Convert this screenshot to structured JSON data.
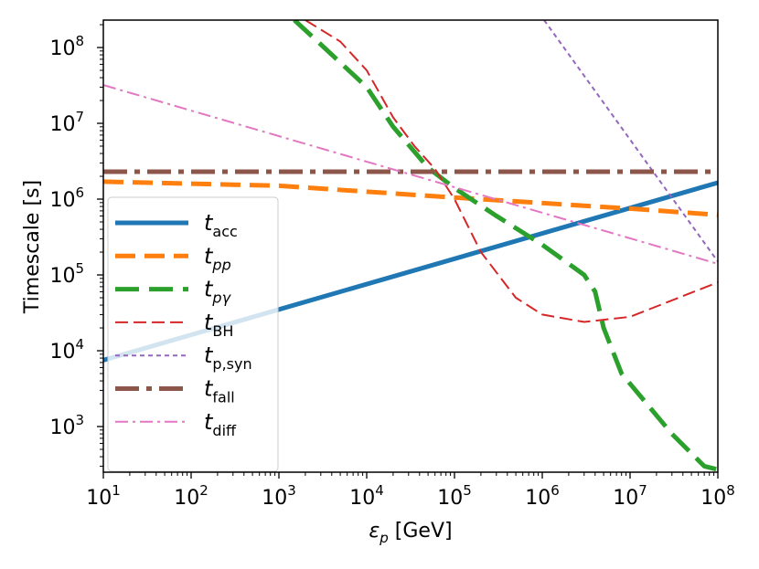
{
  "chart_data": {
    "type": "line",
    "xscale": "log",
    "yscale": "log",
    "xlabel_symbol": "ε",
    "xlabel_sub": "p",
    "xlabel_unit": " [GeV]",
    "ylabel": "Timescale [s]",
    "xlim": [
      10,
      100000000
    ],
    "ylim": [
      250,
      230000000
    ],
    "x_tick_exponents": [
      1,
      2,
      3,
      4,
      5,
      6,
      7,
      8
    ],
    "y_tick_exponents": [
      3,
      4,
      5,
      6,
      7,
      8
    ],
    "tick_base": "10",
    "legend_location": "lower-left",
    "series": [
      {
        "key": "t_acc",
        "label_main": "t",
        "label_sub": "acc",
        "sub_italic": false,
        "color": "#1f77b4",
        "width": 5,
        "dash": "",
        "points": [
          [
            10,
            7500
          ],
          [
            100000000,
            1650000
          ]
        ]
      },
      {
        "key": "t_pp",
        "label_main": "t",
        "label_sub": "pp",
        "sub_italic": true,
        "color": "#ff7f0e",
        "width": 5,
        "dash": "22,10",
        "points": [
          [
            10,
            1700000
          ],
          [
            1000,
            1500000
          ],
          [
            100000,
            1050000
          ],
          [
            10000000,
            750000
          ],
          [
            100000000,
            620000
          ]
        ]
      },
      {
        "key": "t_pgamma",
        "label_main": "t",
        "label_sub": "pγ",
        "sub_italic": true,
        "color": "#2ca02c",
        "width": 5,
        "dash": "26,11",
        "points": [
          [
            1500,
            230000000
          ],
          [
            3000,
            110000000
          ],
          [
            10000,
            30000000
          ],
          [
            20000,
            9000000
          ],
          [
            50000,
            2600000
          ],
          [
            100000,
            1400000
          ],
          [
            300000,
            600000
          ],
          [
            1000000,
            250000
          ],
          [
            3000000,
            100000
          ],
          [
            4000000,
            60000
          ],
          [
            5000000,
            20000
          ],
          [
            8000000,
            5000
          ],
          [
            30000000,
            800
          ],
          [
            70000000,
            300
          ],
          [
            100000000,
            270
          ]
        ]
      },
      {
        "key": "t_BH",
        "label_main": "t",
        "label_sub": "BH",
        "sub_italic": false,
        "color": "#d62728",
        "width": 2,
        "dash": "14,6",
        "points": [
          [
            2000,
            230000000
          ],
          [
            5000,
            120000000
          ],
          [
            10000,
            50000000
          ],
          [
            20000,
            12000000
          ],
          [
            35000,
            5000000
          ],
          [
            60000,
            2500000
          ],
          [
            100000,
            1000000
          ],
          [
            200000,
            200000
          ],
          [
            500000,
            50000
          ],
          [
            1000000,
            30000
          ],
          [
            3000000,
            24000
          ],
          [
            10000000,
            28000
          ],
          [
            100000000,
            80000
          ]
        ]
      },
      {
        "key": "t_psyn",
        "label_main": "t",
        "label_sub": "p,syn",
        "sub_italic": false,
        "color": "#9467bd",
        "width": 2,
        "dash": "5,4",
        "points": [
          [
            1050000,
            230000000
          ],
          [
            100000000,
            150000
          ]
        ]
      },
      {
        "key": "t_fall",
        "label_main": "t",
        "label_sub": "fall",
        "sub_italic": false,
        "color": "#8c564b",
        "width": 5,
        "dash": "26,8,6,8",
        "points": [
          [
            10,
            2300000
          ],
          [
            100000000,
            2300000
          ]
        ]
      },
      {
        "key": "t_diff",
        "label_main": "t",
        "label_sub": "diff",
        "sub_italic": false,
        "color": "#e377c2",
        "width": 2,
        "dash": "14,5,3,5",
        "points": [
          [
            10,
            32000000
          ],
          [
            100000000,
            140000
          ]
        ]
      }
    ]
  }
}
